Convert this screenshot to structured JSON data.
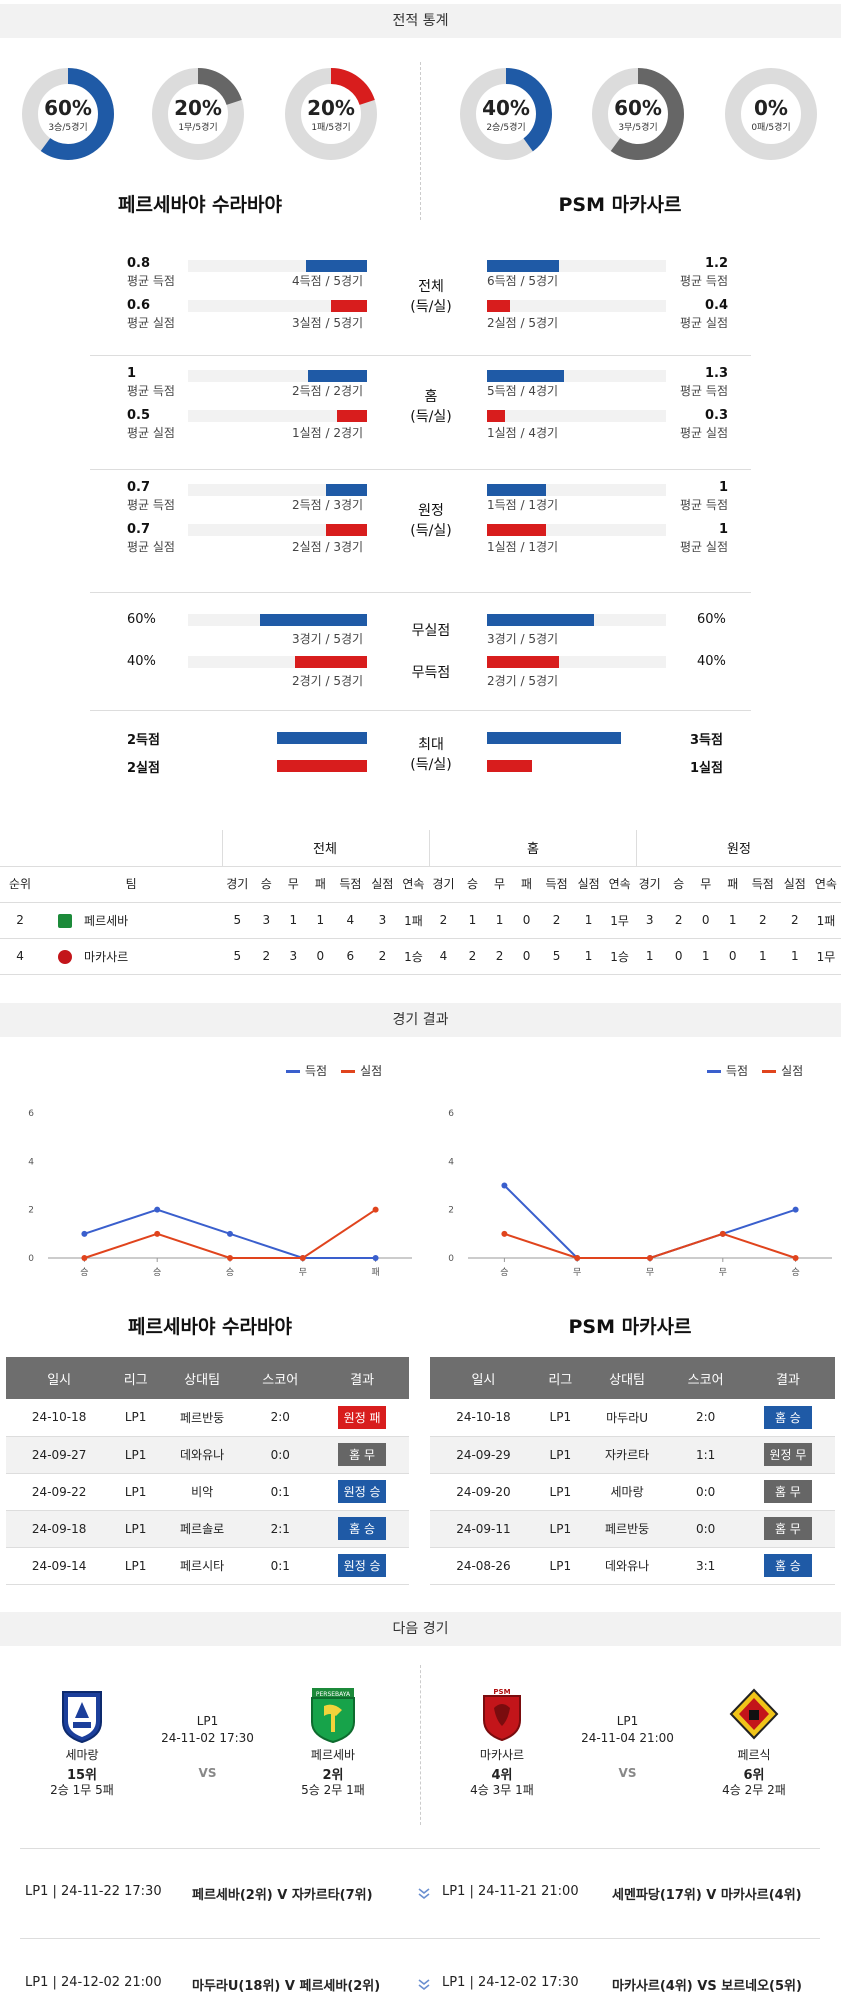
{
  "sections": {
    "stats_title": "전적 통계",
    "results_title": "경기 결과",
    "next_title": "다음 경기"
  },
  "teams": {
    "home": {
      "name": "페르세바야 수라바야",
      "short": "페르세바"
    },
    "away": {
      "name": "PSM 마카사르",
      "short": "마카사르"
    }
  },
  "donuts": {
    "home": [
      {
        "pct": "60%",
        "sub": "3승/5경기",
        "fraction": 0.6,
        "color": "#1f5aa6"
      },
      {
        "pct": "20%",
        "sub": "1무/5경기",
        "fraction": 0.2,
        "color": "#666666"
      },
      {
        "pct": "20%",
        "sub": "1패/5경기",
        "fraction": 0.2,
        "color": "#d81d1d"
      }
    ],
    "away": [
      {
        "pct": "40%",
        "sub": "2승/5경기",
        "fraction": 0.4,
        "color": "#1f5aa6"
      },
      {
        "pct": "60%",
        "sub": "3무/5경기",
        "fraction": 0.6,
        "color": "#666666"
      },
      {
        "pct": "0%",
        "sub": "0패/5경기",
        "fraction": 0.0,
        "color": "#d81d1d"
      }
    ]
  },
  "goal_groups": [
    {
      "label": "전체\n(득/실)",
      "label1": "전체",
      "label2": "(득/실)",
      "home_for": {
        "val": "0.8",
        "txt": "평균 득점",
        "detail": "4득점 / 5경기",
        "fraction": 0.34
      },
      "home_against": {
        "val": "0.6",
        "txt": "평균 실점",
        "detail": "3실점 / 5경기",
        "fraction": 0.2
      },
      "away_for": {
        "val": "1.2",
        "txt": "평균 득점",
        "detail": "6득점 / 5경기",
        "fraction": 0.4
      },
      "away_against": {
        "val": "0.4",
        "txt": "평균 실점",
        "detail": "2실점 / 5경기",
        "fraction": 0.13
      }
    },
    {
      "label1": "홈",
      "label2": "(득/실)",
      "home_for": {
        "val": "1",
        "txt": "평균 득점",
        "detail": "2득점 / 2경기",
        "fraction": 0.33
      },
      "home_against": {
        "val": "0.5",
        "txt": "평균 실점",
        "detail": "1실점 / 2경기",
        "fraction": 0.17
      },
      "away_for": {
        "val": "1.3",
        "txt": "평균 득점",
        "detail": "5득점 / 4경기",
        "fraction": 0.43
      },
      "away_against": {
        "val": "0.3",
        "txt": "평균 실점",
        "detail": "1실점 / 4경기",
        "fraction": 0.1
      }
    },
    {
      "label1": "원정",
      "label2": "(득/실)",
      "home_for": {
        "val": "0.7",
        "txt": "평균 득점",
        "detail": "2득점 / 3경기",
        "fraction": 0.23
      },
      "home_against": {
        "val": "0.7",
        "txt": "평균 실점",
        "detail": "2실점 / 3경기",
        "fraction": 0.23
      },
      "away_for": {
        "val": "1",
        "txt": "평균 득점",
        "detail": "1득점 / 1경기",
        "fraction": 0.33
      },
      "away_against": {
        "val": "1",
        "txt": "평균 실점",
        "detail": "1실점 / 1경기",
        "fraction": 0.33
      }
    }
  ],
  "clean": {
    "nocon_label": "무실점",
    "noscore_label": "무득점",
    "home_nocon": {
      "val": "60%",
      "detail": "3경기 / 5경기",
      "fraction": 0.6
    },
    "home_noscore": {
      "val": "40%",
      "detail": "2경기 / 5경기",
      "fraction": 0.4
    },
    "away_nocon": {
      "val": "60%",
      "detail": "3경기 / 5경기",
      "fraction": 0.6
    },
    "away_noscore": {
      "val": "40%",
      "detail": "2경기 / 5경기",
      "fraction": 0.4
    }
  },
  "max": {
    "label1": "최대",
    "label2": "(득/실)",
    "home_for": {
      "val": "2득점",
      "fraction": 0.5
    },
    "home_against": {
      "val": "2실점",
      "fraction": 0.5
    },
    "away_for": {
      "val": "3득점",
      "fraction": 0.75
    },
    "away_against": {
      "val": "1실점",
      "fraction": 0.25
    }
  },
  "standings": {
    "groups": [
      "전체",
      "홈",
      "원정"
    ],
    "headers": [
      "순위",
      "팀",
      "경기",
      "승",
      "무",
      "패",
      "득점",
      "실점",
      "연속",
      "경기",
      "승",
      "무",
      "패",
      "득점",
      "실점",
      "연속",
      "경기",
      "승",
      "무",
      "패",
      "득점",
      "실점",
      "연속"
    ],
    "rows": [
      [
        "2",
        "페르세바",
        "5",
        "3",
        "1",
        "1",
        "4",
        "3",
        "1패",
        "2",
        "1",
        "1",
        "0",
        "2",
        "1",
        "1무",
        "3",
        "2",
        "0",
        "1",
        "2",
        "2",
        "1패"
      ],
      [
        "4",
        "마카사르",
        "5",
        "2",
        "3",
        "0",
        "6",
        "2",
        "1승",
        "4",
        "2",
        "2",
        "0",
        "5",
        "1",
        "1승",
        "1",
        "0",
        "1",
        "0",
        "1",
        "1",
        "1무"
      ]
    ]
  },
  "chart_data": [
    {
      "type": "line",
      "title": "페르세바야 수라바야",
      "x": [
        "승",
        "승",
        "승",
        "무",
        "패"
      ],
      "ylim": [
        0,
        6
      ],
      "yticks": [
        "0",
        "2",
        "4",
        "6"
      ],
      "series": [
        {
          "name": "득점",
          "color": "#3a5fcd",
          "values": [
            1,
            2,
            1,
            0,
            0
          ]
        },
        {
          "name": "실점",
          "color": "#e0441d",
          "values": [
            0,
            1,
            0,
            0,
            2
          ]
        }
      ]
    },
    {
      "type": "line",
      "title": "PSM 마카사르",
      "x": [
        "승",
        "무",
        "무",
        "무",
        "승"
      ],
      "ylim": [
        0,
        6
      ],
      "yticks": [
        "0",
        "2",
        "4",
        "6"
      ],
      "series": [
        {
          "name": "득점",
          "color": "#3a5fcd",
          "values": [
            3,
            0,
            0,
            1,
            2
          ]
        },
        {
          "name": "실점",
          "color": "#e0441d",
          "values": [
            1,
            0,
            0,
            1,
            0
          ]
        }
      ]
    }
  ],
  "results": {
    "headers": [
      "일시",
      "리그",
      "상대팀",
      "스코어",
      "결과"
    ],
    "home": [
      [
        "24-10-18",
        "LP1",
        "페르반둥",
        "2:0",
        "원정 패",
        "red"
      ],
      [
        "24-09-27",
        "LP1",
        "데와유나",
        "0:0",
        "홈 무",
        "gray"
      ],
      [
        "24-09-22",
        "LP1",
        "비악",
        "0:1",
        "원정 승",
        "blue"
      ],
      [
        "24-09-18",
        "LP1",
        "페르솔로",
        "2:1",
        "홈 승",
        "blue"
      ],
      [
        "24-09-14",
        "LP1",
        "페르시타",
        "0:1",
        "원정 승",
        "blue"
      ]
    ],
    "away": [
      [
        "24-10-18",
        "LP1",
        "마두라U",
        "2:0",
        "홈 승",
        "blue"
      ],
      [
        "24-09-29",
        "LP1",
        "자카르타",
        "1:1",
        "원정 무",
        "gray"
      ],
      [
        "24-09-20",
        "LP1",
        "세마랑",
        "0:0",
        "홈 무",
        "gray"
      ],
      [
        "24-09-11",
        "LP1",
        "페르반둥",
        "0:0",
        "홈 무",
        "gray"
      ],
      [
        "24-08-26",
        "LP1",
        "데와유나",
        "3:1",
        "홈 승",
        "blue"
      ]
    ]
  },
  "next": {
    "home_match": {
      "league": "LP1",
      "datetime": "24-11-02 17:30",
      "vs": "VS",
      "left": {
        "name": "세마랑",
        "rank": "15위",
        "record": "2승 1무 5패"
      },
      "right": {
        "name": "페르세바",
        "rank": "2위",
        "record": "5승 2무 1패",
        "crest_text": "PERSEBAYA"
      }
    },
    "away_match": {
      "league": "LP1",
      "datetime": "24-11-04 21:00",
      "vs": "VS",
      "left": {
        "name": "마카사르",
        "rank": "4위",
        "record": "4승 3무 1패",
        "crest_text": "PSM"
      },
      "right": {
        "name": "페르식",
        "rank": "6위",
        "record": "4승 2무 2패"
      }
    },
    "upcoming": [
      {
        "info": "LP1 | 24-11-22 17:30",
        "teams": "페르세바(2위) V  자카르타(7위)"
      },
      {
        "info": "LP1 | 24-11-21 21:00",
        "teams": "세멘파당(17위) V  마카사르(4위)"
      },
      {
        "info": "LP1 | 24-12-02 21:00",
        "teams": "마두라U(18위) V  페르세바(2위)"
      },
      {
        "info": "LP1 | 24-12-02 17:30",
        "teams": "마카사르(4위) VS 보르네오(5위)"
      }
    ]
  }
}
